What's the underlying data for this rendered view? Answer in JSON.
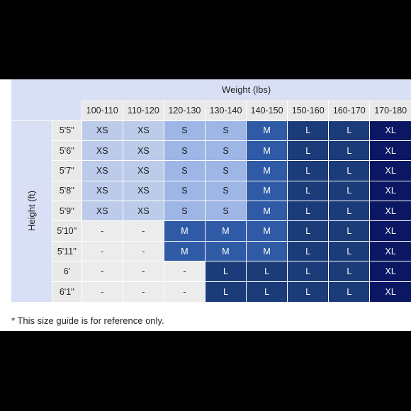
{
  "weight_label": "Weight (lbs)",
  "height_label": "Height (ft)",
  "weights": [
    "100-110",
    "110-120",
    "120-130",
    "130-140",
    "140-150",
    "150-160",
    "160-170",
    "170-180"
  ],
  "rows": [
    {
      "height": "5'5''",
      "sizes": [
        "XS",
        "XS",
        "S",
        "S",
        "M",
        "L",
        "L",
        "XL"
      ]
    },
    {
      "height": "5'6''",
      "sizes": [
        "XS",
        "XS",
        "S",
        "S",
        "M",
        "L",
        "L",
        "XL"
      ]
    },
    {
      "height": "5'7''",
      "sizes": [
        "XS",
        "XS",
        "S",
        "S",
        "M",
        "L",
        "L",
        "XL"
      ]
    },
    {
      "height": "5'8''",
      "sizes": [
        "XS",
        "XS",
        "S",
        "S",
        "M",
        "L",
        "L",
        "XL"
      ]
    },
    {
      "height": "5'9''",
      "sizes": [
        "XS",
        "XS",
        "S",
        "S",
        "M",
        "L",
        "L",
        "XL"
      ]
    },
    {
      "height": "5'10''",
      "sizes": [
        "-",
        "-",
        "M",
        "M",
        "M",
        "L",
        "L",
        "XL"
      ]
    },
    {
      "height": "5'11''",
      "sizes": [
        "-",
        "-",
        "M",
        "M",
        "M",
        "L",
        "L",
        "XL"
      ]
    },
    {
      "height": "6'",
      "sizes": [
        "-",
        "-",
        "-",
        "L",
        "L",
        "L",
        "L",
        "XL"
      ]
    },
    {
      "height": "6'1''",
      "sizes": [
        "-",
        "-",
        "-",
        "L",
        "L",
        "L",
        "L",
        "XL"
      ]
    }
  ],
  "footnote": "* This size guide is for reference only.",
  "colors": {
    "XS": "#bccbea",
    "S": "#9db6e6",
    "M": "#2f5aa6",
    "L": "#1b3b79",
    "XL": "#0b1762",
    "header": "#d9dff4",
    "label_cell": "#e9e9e9"
  }
}
